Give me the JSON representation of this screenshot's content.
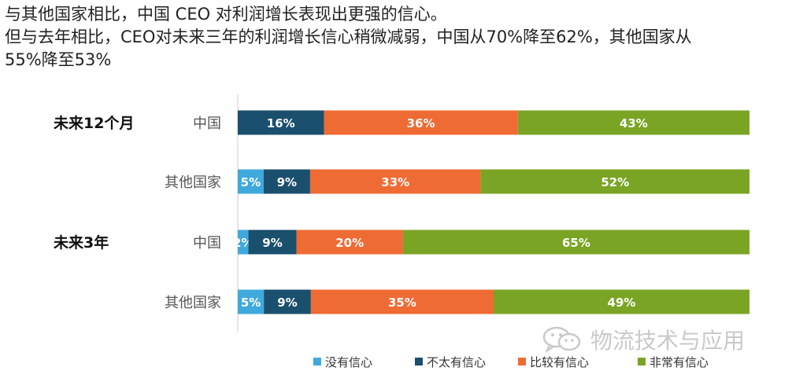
{
  "header": {
    "line1": "与其他国家相比，中国 CEO 对利润增长表现出更强的信心。",
    "line2": "但与去年相比，CEO对未来三年的利润增长信心稍微减弱，中国从70%降至62%，其他国家从",
    "line3": "55%降至53%"
  },
  "watermark": {
    "text": "物流技术与应用",
    "icon": "wechat-icon"
  },
  "chart_data": {
    "type": "bar",
    "orientation": "horizontal",
    "stacked": true,
    "groups": [
      {
        "label": "未来12个月",
        "rows": [
          "中国",
          "其他国家"
        ]
      },
      {
        "label": "未来3年",
        "rows": [
          "中国",
          "其他国家"
        ]
      }
    ],
    "categories": [
      "中国",
      "其他国家",
      "中国",
      "其他国家"
    ],
    "series": [
      {
        "name": "没有信心",
        "color": "#3fa9dd",
        "values": [
          0,
          5,
          2,
          5
        ],
        "labels": [
          "",
          "5%",
          "2%",
          "5%"
        ]
      },
      {
        "name": "不太有信心",
        "color": "#1b4f6e",
        "values": [
          16,
          9,
          9,
          9
        ],
        "labels": [
          "16%",
          "9%",
          "9%",
          "9%"
        ]
      },
      {
        "name": "比较有信心",
        "color": "#ef6b34",
        "values": [
          36,
          33,
          20,
          35
        ],
        "labels": [
          "36%",
          "33%",
          "20%",
          "35%"
        ]
      },
      {
        "name": "非常有信心",
        "color": "#7aa524",
        "values": [
          43,
          52,
          65,
          49
        ],
        "labels": [
          "43%",
          "52%",
          "65%",
          "49%"
        ]
      }
    ],
    "legend_position": "bottom",
    "grid": false,
    "xaxis_visible": false
  }
}
